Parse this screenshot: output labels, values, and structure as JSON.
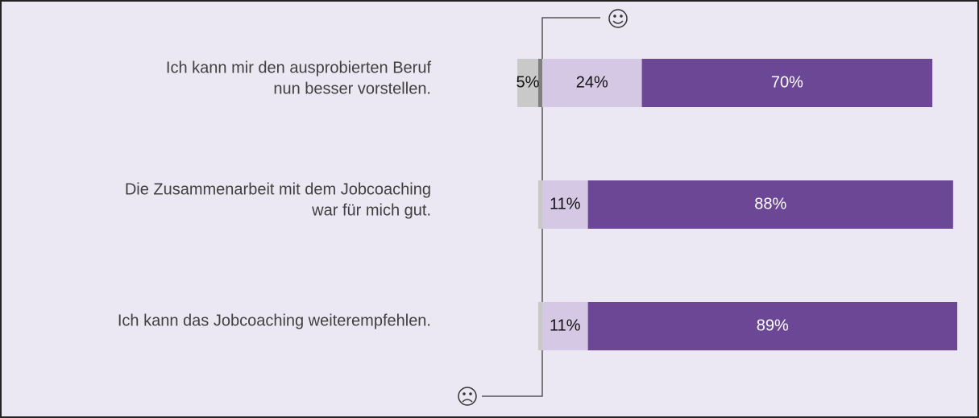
{
  "chart_data": {
    "type": "diverging-bar",
    "categories": [
      [
        "Ich kann mir den ausprobierten Beruf",
        "nun besser vorstellen."
      ],
      [
        "Die Zusammenarbeit mit dem Jobcoaching",
        "war für mich gut."
      ],
      [
        "Ich kann das Jobcoaching weiterempfehlen."
      ]
    ],
    "series": [
      {
        "color": "#7f7f7f",
        "side": "negative",
        "values": [
          1,
          0,
          0
        ],
        "value_labels": [
          null,
          null,
          null
        ]
      },
      {
        "color": "#c9c9c9",
        "side": "negative",
        "values": [
          5,
          1,
          1
        ],
        "value_labels": [
          "5%",
          null,
          null
        ]
      },
      {
        "color": "#d4c8e4",
        "side": "positive",
        "values": [
          24,
          11,
          11
        ],
        "value_labels": [
          "24%",
          "11%",
          "11%"
        ]
      },
      {
        "color": "#6b4795",
        "side": "positive",
        "values": [
          70,
          88,
          89
        ],
        "value_labels": [
          "70%",
          "88%",
          "89%"
        ]
      }
    ]
  }
}
